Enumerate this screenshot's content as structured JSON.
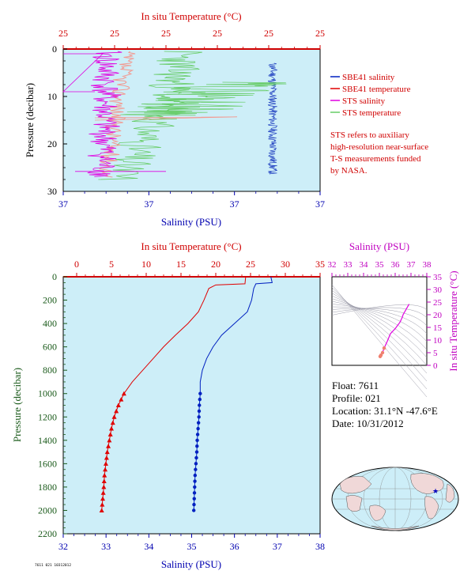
{
  "colors": {
    "bg": "#cdeef8",
    "salinity": "#0020c0",
    "temperature": "#e00000",
    "sts_salinity": "#e000e0",
    "sts_temperature": "#66cc66",
    "sts_temperature_light": "#f29a92",
    "axis_red": "#d00000",
    "axis_blue": "#0000b0",
    "axis_green": "#1a5a1a",
    "axis_magenta": "#c000c0"
  },
  "top_panel": {
    "top_axis_title": "In situ Temperature (°C)",
    "bottom_axis_title": "Salinity (PSU)",
    "left_axis_title": "Pressure (decibar)",
    "top_ticks": [
      "25",
      "25",
      "25",
      "25",
      "25",
      "25"
    ],
    "bottom_ticks": [
      "37",
      "37",
      "37",
      "37"
    ],
    "left_ticks": [
      "0",
      "10",
      "20",
      "30"
    ],
    "legend": [
      {
        "label": "SBE41 salinity",
        "color": "#0020c0"
      },
      {
        "label": "SBE41 temperature",
        "color": "#e00000"
      },
      {
        "label": "STS salinity",
        "color": "#e000e0"
      },
      {
        "label": "STS temperature",
        "color": "#66cc66"
      }
    ],
    "note": [
      "STS refers to auxiliary",
      "high-resolution near-surface",
      "T-S measurements funded",
      "by NASA."
    ]
  },
  "main_panel": {
    "top_axis_title": "In situ Temperature (°C)",
    "bottom_axis_title": "Salinity (PSU)",
    "left_axis_title": "Pressure (decibar)",
    "top_ticks": [
      "0",
      "5",
      "10",
      "15",
      "20",
      "25",
      "30",
      "35"
    ],
    "bottom_ticks": [
      "32",
      "33",
      "34",
      "35",
      "36",
      "37",
      "38"
    ],
    "left_ticks": [
      "0",
      "200",
      "400",
      "600",
      "800",
      "1000",
      "1200",
      "1400",
      "1600",
      "1800",
      "2000",
      "2200"
    ]
  },
  "ts_panel": {
    "top_axis_title": "Salinity (PSU)",
    "right_axis_title": "In situ Temperature (°C)",
    "top_ticks": [
      "32",
      "33",
      "34",
      "35",
      "36",
      "37",
      "38"
    ],
    "right_ticks": [
      "0",
      "5",
      "10",
      "15",
      "20",
      "25",
      "30",
      "35"
    ]
  },
  "info": {
    "float": "Float:  7611",
    "profile": "Profile:  021",
    "location": "Location:  31.1°N  -47.6°E",
    "date": "Date:  10/31/2012"
  },
  "footer_code": "7611 021 10312012",
  "chart_data": [
    {
      "type": "line",
      "title": "",
      "xlabel": "Salinity (PSU)",
      "ylabel": "Pressure (decibar)",
      "ylim": [
        2200,
        0
      ],
      "xlim": [
        32,
        38
      ],
      "series": [
        {
          "name": "SBE41 salinity",
          "axis": "salinity",
          "x": [
            36.85,
            36.88,
            36.5,
            36.45,
            36.4,
            36.3,
            36.0,
            35.7,
            35.5,
            35.35,
            35.25,
            35.2,
            35.2,
            35.18,
            35.17,
            35.15,
            35.13,
            35.12,
            35.1,
            35.08,
            35.07,
            35.06,
            35.05,
            35.05
          ],
          "y": [
            0,
            50,
            60,
            100,
            200,
            300,
            400,
            500,
            600,
            700,
            800,
            900,
            1000,
            1100,
            1200,
            1300,
            1400,
            1500,
            1600,
            1700,
            1800,
            1900,
            2000,
            2000
          ]
        },
        {
          "name": "SBE41 temperature",
          "axis": "temperature",
          "x": [
            24.3,
            24.2,
            20.0,
            19.0,
            18.3,
            17.5,
            16.0,
            14.2,
            12.5,
            11.0,
            9.5,
            8.0,
            6.8,
            6.0,
            5.4,
            5.0,
            4.7,
            4.4,
            4.2,
            4.0,
            3.9,
            3.75,
            3.6,
            3.5
          ],
          "y": [
            0,
            60,
            70,
            100,
            200,
            300,
            400,
            500,
            600,
            700,
            800,
            900,
            1000,
            1100,
            1200,
            1300,
            1400,
            1500,
            1600,
            1700,
            1800,
            1900,
            2000,
            2000
          ]
        }
      ]
    },
    {
      "type": "scatter",
      "title": "",
      "xlabel": "Salinity (PSU)",
      "ylabel": "In situ Temperature (°C)",
      "xlim": [
        32,
        38
      ],
      "ylim": [
        0,
        35
      ],
      "series": [
        {
          "name": "T-S",
          "x": [
            35.05,
            35.1,
            35.2,
            35.3,
            35.5,
            35.7,
            36.0,
            36.3,
            36.45,
            36.5,
            36.88
          ],
          "y": [
            3.5,
            4.0,
            5.0,
            6.8,
            9.5,
            12.5,
            14.5,
            17.0,
            19.0,
            20.0,
            24.2
          ]
        }
      ]
    }
  ]
}
